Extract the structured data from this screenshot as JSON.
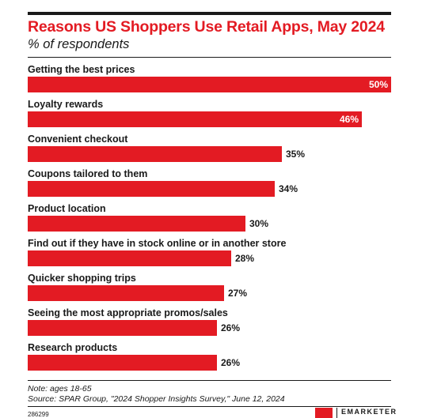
{
  "chart_data": {
    "type": "bar",
    "orientation": "horizontal",
    "title": "Reasons US Shoppers Use Retail Apps, May 2024",
    "subtitle": "% of respondents",
    "categories": [
      "Getting the best prices",
      "Loyalty rewards",
      "Convenient checkout",
      "Coupons tailored to them",
      "Product location",
      "Find out if they have in stock online or in another store",
      "Quicker shopping trips",
      "Seeing the most appropriate promos/sales",
      "Research products"
    ],
    "values": [
      50,
      46,
      35,
      34,
      30,
      28,
      27,
      26,
      26
    ],
    "value_labels": [
      "50%",
      "46%",
      "35%",
      "34%",
      "30%",
      "28%",
      "27%",
      "26%",
      "26%"
    ],
    "xlim": [
      0,
      50
    ],
    "grid": false,
    "bar_color": "#e31b23",
    "note": "Note: ages 18-65",
    "source": "Source: SPAR Group, \"2024 Shopper Insights Survey,\" June 12, 2024"
  },
  "footer": {
    "chart_id": "286299",
    "brand": "EMARKETER"
  },
  "colors": {
    "accent": "#e31b23",
    "text": "#1a1a1a"
  }
}
